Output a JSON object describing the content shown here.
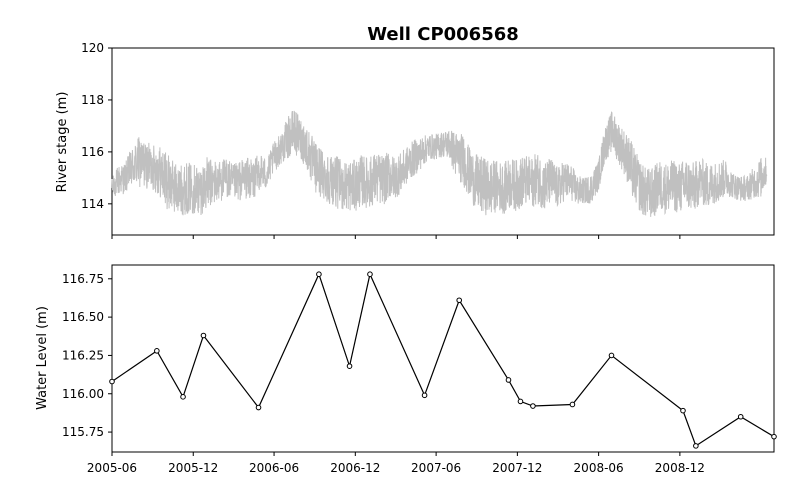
{
  "figure": {
    "title": "Well CP006568"
  },
  "chart_data": [
    {
      "type": "line",
      "panel": "top",
      "title": "Well CP006568",
      "xlabel": "",
      "ylabel": "River stage (m)",
      "ylim": [
        112.8,
        120
      ],
      "yticks": [
        114,
        116,
        118,
        120
      ],
      "xticks": [
        "2005-06",
        "2005-12",
        "2006-06",
        "2006-12",
        "2007-06",
        "2007-12",
        "2008-06",
        "2008-12"
      ],
      "show_x_tick_labels": false,
      "grid": false,
      "series": [
        {
          "color": "#c0c0c0",
          "x": [
            "2005-06-01",
            "2005-06-15",
            "2005-07-01",
            "2005-07-15",
            "2005-08-01",
            "2005-08-15",
            "2005-09-01",
            "2005-09-15",
            "2005-10-01",
            "2005-10-15",
            "2005-11-01",
            "2005-11-15",
            "2005-12-01",
            "2005-12-15",
            "2006-01-01",
            "2006-01-15",
            "2006-02-01",
            "2006-02-15",
            "2006-03-01",
            "2006-03-15",
            "2006-04-01",
            "2006-04-15",
            "2006-05-01",
            "2006-05-15",
            "2006-06-01",
            "2006-06-15",
            "2006-07-01",
            "2006-07-15",
            "2006-08-01",
            "2006-08-15",
            "2006-09-01",
            "2006-09-15",
            "2006-10-01",
            "2006-10-15",
            "2006-11-01",
            "2006-11-15",
            "2006-12-01",
            "2006-12-15",
            "2007-01-01",
            "2007-01-15",
            "2007-02-01",
            "2007-02-15",
            "2007-03-01",
            "2007-03-15",
            "2007-04-01",
            "2007-04-15",
            "2007-05-01",
            "2007-05-15",
            "2007-06-01",
            "2007-06-15",
            "2007-07-01",
            "2007-07-15",
            "2007-08-01",
            "2007-08-15",
            "2007-09-01",
            "2007-09-15",
            "2007-10-01",
            "2007-10-15",
            "2007-11-01",
            "2007-11-15",
            "2007-12-01",
            "2007-12-15",
            "2008-01-01",
            "2008-01-15",
            "2008-02-01",
            "2008-02-15",
            "2008-03-01",
            "2008-03-15",
            "2008-04-01",
            "2008-04-15",
            "2008-05-01",
            "2008-05-15",
            "2008-06-01",
            "2008-06-15",
            "2008-07-01",
            "2008-07-15",
            "2008-08-01",
            "2008-08-15",
            "2008-09-01",
            "2008-09-15",
            "2008-10-01",
            "2008-10-15",
            "2008-11-01",
            "2008-11-15",
            "2008-12-01",
            "2008-12-15",
            "2009-01-01",
            "2009-01-15",
            "2009-02-01",
            "2009-02-15",
            "2009-03-01",
            "2009-03-15",
            "2009-04-01",
            "2009-04-15",
            "2009-05-01",
            "2009-05-15",
            "2009-06-01",
            "2009-06-15"
          ],
          "mid": [
            114.6,
            114.9,
            115.0,
            115.4,
            115.6,
            115.5,
            115.4,
            115.3,
            114.9,
            114.7,
            114.5,
            114.6,
            114.6,
            114.5,
            114.8,
            114.8,
            114.9,
            115.0,
            114.8,
            114.9,
            115.0,
            114.9,
            115.3,
            115.1,
            115.8,
            116.1,
            116.5,
            116.8,
            116.5,
            116.1,
            115.4,
            115.2,
            115.0,
            114.9,
            114.7,
            114.7,
            114.7,
            114.9,
            114.8,
            115.0,
            114.9,
            115.1,
            115.0,
            115.2,
            115.6,
            115.8,
            116.0,
            116.2,
            116.2,
            116.3,
            116.3,
            115.9,
            115.7,
            115.2,
            114.8,
            114.7,
            114.6,
            114.7,
            114.6,
            114.8,
            114.7,
            114.9,
            114.8,
            115.0,
            114.7,
            114.9,
            114.6,
            114.9,
            114.8,
            114.5,
            114.5,
            114.6,
            115.1,
            116.3,
            116.8,
            116.4,
            115.9,
            115.3,
            114.7,
            114.4,
            114.4,
            114.7,
            114.6,
            114.7,
            114.6,
            114.8,
            114.6,
            114.9,
            114.7,
            114.8,
            114.9,
            115.0,
            114.7,
            114.6,
            114.6,
            114.8,
            115.0,
            115.3
          ],
          "amp": [
            0.4,
            0.6,
            0.6,
            0.8,
            1.0,
            0.9,
            0.9,
            1.0,
            1.1,
            1.0,
            1.0,
            1.0,
            1.0,
            1.0,
            1.0,
            0.9,
            0.8,
            0.8,
            0.7,
            0.8,
            0.8,
            0.8,
            0.7,
            0.6,
            0.6,
            0.6,
            0.8,
            0.9,
            0.8,
            0.9,
            1.0,
            1.0,
            1.0,
            1.0,
            1.0,
            1.0,
            1.0,
            1.0,
            1.0,
            1.0,
            1.0,
            0.9,
            0.8,
            0.8,
            0.7,
            0.7,
            0.6,
            0.5,
            0.5,
            0.5,
            0.6,
            0.9,
            1.0,
            1.0,
            1.1,
            1.1,
            1.1,
            1.0,
            1.0,
            1.0,
            1.0,
            1.0,
            1.0,
            1.0,
            1.0,
            0.9,
            0.8,
            0.8,
            0.7,
            0.6,
            0.5,
            0.6,
            0.6,
            0.7,
            0.8,
            0.8,
            0.9,
            1.1,
            1.0,
            1.0,
            1.0,
            1.0,
            1.0,
            1.0,
            1.0,
            1.0,
            1.0,
            0.9,
            0.9,
            0.8,
            0.8,
            0.7,
            0.5,
            0.5,
            0.5,
            0.6,
            0.8,
            0.5
          ]
        }
      ]
    },
    {
      "type": "line",
      "panel": "bottom",
      "xlabel": "",
      "ylabel": "Water Level (m)",
      "ylim": [
        115.62,
        116.84
      ],
      "yticks": [
        115.75,
        116.0,
        116.25,
        116.5,
        116.75
      ],
      "ytick_labels": [
        "115.75",
        "116.00",
        "116.25",
        "116.50",
        "116.75"
      ],
      "xticks": [
        "2005-06",
        "2005-12",
        "2006-06",
        "2006-12",
        "2007-06",
        "2007-12",
        "2008-06",
        "2008-12"
      ],
      "xtick_labels": [
        "2005-06",
        "2005-12",
        "2006-06",
        "2006-12",
        "2007-06",
        "2007-12",
        "2008-06",
        "2008-12"
      ],
      "grid": false,
      "series": [
        {
          "color": "#000000",
          "marker": "circle-open",
          "points": [
            {
              "x": "2005-06-01",
              "y": 116.08
            },
            {
              "x": "2005-09-10",
              "y": 116.28
            },
            {
              "x": "2005-11-08",
              "y": 115.98
            },
            {
              "x": "2005-12-24",
              "y": 116.38
            },
            {
              "x": "2006-04-27",
              "y": 115.91
            },
            {
              "x": "2006-09-10",
              "y": 116.78
            },
            {
              "x": "2006-11-18",
              "y": 116.18
            },
            {
              "x": "2007-01-03",
              "y": 116.78
            },
            {
              "x": "2007-05-06",
              "y": 115.99
            },
            {
              "x": "2007-07-23",
              "y": 116.61
            },
            {
              "x": "2007-11-11",
              "y": 116.09
            },
            {
              "x": "2007-12-08",
              "y": 115.95
            },
            {
              "x": "2008-01-05",
              "y": 115.92
            },
            {
              "x": "2008-04-03",
              "y": 115.93
            },
            {
              "x": "2008-06-30",
              "y": 116.25
            },
            {
              "x": "2008-12-08",
              "y": 115.89
            },
            {
              "x": "2009-01-06",
              "y": 115.66
            },
            {
              "x": "2009-04-17",
              "y": 115.85
            },
            {
              "x": "2009-07-01",
              "y": 115.72
            }
          ]
        }
      ]
    }
  ]
}
